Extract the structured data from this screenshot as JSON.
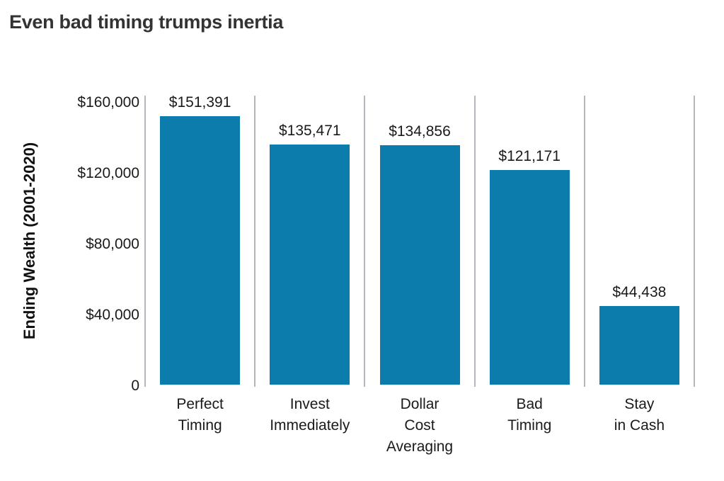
{
  "title": "Even bad timing trumps inertia",
  "chart_data": {
    "type": "bar",
    "title": "Even bad timing trumps inertia",
    "categories": [
      "Perfect\nTiming",
      "Invest\nImmediately",
      "Dollar\nCost\nAveraging",
      "Bad\nTiming",
      "Stay\nin Cash"
    ],
    "values": [
      151391,
      135471,
      134856,
      121171,
      44438
    ],
    "value_labels": [
      "$151,391",
      "$135,471",
      "$134,856",
      "$121,171",
      "$44,438"
    ],
    "xlabel": "",
    "ylabel": "Ending Wealth (2001-2020)",
    "ylim": [
      0,
      160000
    ],
    "yticks": [
      {
        "value": 160000,
        "label": "$160,000"
      },
      {
        "value": 120000,
        "label": "$120,000"
      },
      {
        "value": 80000,
        "label": "$80,000"
      },
      {
        "value": 40000,
        "label": "$40,000"
      },
      {
        "value": 0,
        "label": "0"
      }
    ],
    "legend": "none",
    "grid": "vertical-separators-between-categories",
    "colors": {
      "bar": "#0b7cac",
      "gridline": "#b2b8bd",
      "title_text": "#333333",
      "axis_text": "#1a1a1a"
    }
  }
}
